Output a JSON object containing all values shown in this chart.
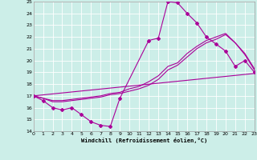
{
  "xlabel": "Windchill (Refroidissement éolien,°C)",
  "xlim": [
    0,
    23
  ],
  "ylim": [
    14,
    25
  ],
  "xticks": [
    0,
    1,
    2,
    3,
    4,
    5,
    6,
    7,
    8,
    9,
    10,
    11,
    12,
    13,
    14,
    15,
    16,
    17,
    18,
    19,
    20,
    21,
    22,
    23
  ],
  "yticks": [
    14,
    15,
    16,
    17,
    18,
    19,
    20,
    21,
    22,
    23,
    24,
    25
  ],
  "bg_color": "#cceee8",
  "grid_color": "#ffffff",
  "line_color": "#aa0099",
  "curve_main_x": [
    0,
    1,
    2,
    3,
    4,
    5,
    6,
    7,
    8,
    9,
    12,
    13,
    14,
    15,
    16,
    17,
    18,
    19,
    20,
    21,
    22,
    23
  ],
  "curve_main_y": [
    17.0,
    16.6,
    16.0,
    15.8,
    16.0,
    15.4,
    14.8,
    14.5,
    14.4,
    16.8,
    21.7,
    21.9,
    25.0,
    24.9,
    24.0,
    23.2,
    22.0,
    21.4,
    20.8,
    19.5,
    20.0,
    19.0
  ],
  "curve2_x": [
    0,
    1,
    2,
    3,
    4,
    5,
    6,
    7,
    8,
    9,
    10,
    11,
    12,
    13,
    14,
    15,
    16,
    17,
    18,
    19,
    20,
    21,
    22,
    23
  ],
  "curve2_y": [
    17.0,
    16.8,
    16.5,
    16.5,
    16.6,
    16.7,
    16.8,
    16.9,
    17.1,
    17.2,
    17.4,
    17.6,
    17.9,
    18.4,
    19.2,
    19.6,
    20.3,
    21.0,
    21.5,
    21.8,
    22.2,
    21.5,
    20.5,
    19.2
  ],
  "curve3_x": [
    0,
    23
  ],
  "curve3_y": [
    17.0,
    18.9
  ],
  "curve4_x": [
    0,
    1,
    2,
    3,
    4,
    5,
    6,
    7,
    8,
    9,
    10,
    11,
    12,
    13,
    14,
    15,
    16,
    17,
    18,
    19,
    20,
    21,
    22,
    23
  ],
  "curve4_y": [
    17.0,
    16.8,
    16.6,
    16.6,
    16.7,
    16.8,
    16.9,
    17.0,
    17.2,
    17.3,
    17.6,
    17.8,
    18.2,
    18.7,
    19.5,
    19.8,
    20.6,
    21.2,
    21.7,
    22.0,
    22.3,
    21.5,
    20.6,
    19.3
  ],
  "line_width": 0.8,
  "marker_size": 2.0,
  "tick_fontsize": 4.5,
  "xlabel_fontsize": 5.0
}
